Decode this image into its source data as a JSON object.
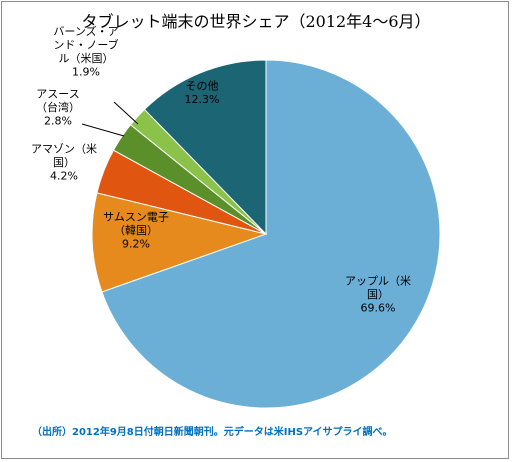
{
  "chart_data": {
    "type": "pie",
    "title": "タブレット端末の世界シェア（2012年4〜6月）",
    "categories": [
      "アップル（米国）",
      "サムスン電子（韓国）",
      "アマゾン（米国）",
      "アスース（台湾）",
      "バーンズ・アンド・ノーブル（米国）",
      "その他"
    ],
    "values": [
      69.6,
      9.2,
      4.2,
      2.8,
      1.9,
      12.3
    ],
    "value_labels": [
      "69.6%",
      "9.2%",
      "4.2%",
      "2.8%",
      "1.9%",
      "12.3%"
    ],
    "colors": [
      "#6baed6",
      "#e68a1e",
      "#e0550f",
      "#5a8f29",
      "#8bc34a",
      "#1b6574"
    ],
    "start_angle_deg": 0,
    "direction": "clockwise",
    "legend": "none",
    "label_lines": [
      [
        "アップル（米",
        "国）",
        "69.6%"
      ],
      [
        "サムスン電子",
        "（韓国）",
        "9.2%"
      ],
      [
        "アマゾン（米",
        "国）",
        "4.2%"
      ],
      [
        "アスース",
        "（台湾）",
        "2.8%"
      ],
      [
        "バーンズ・ア",
        "ンド・ノーブ",
        "ル（米国）",
        "1.9%"
      ],
      [
        "その他",
        "12.3%"
      ]
    ]
  },
  "source_note": "（出所）2012年9月8日付朝日新聞朝刊。元データは米IHSアイサプライ調べ。"
}
